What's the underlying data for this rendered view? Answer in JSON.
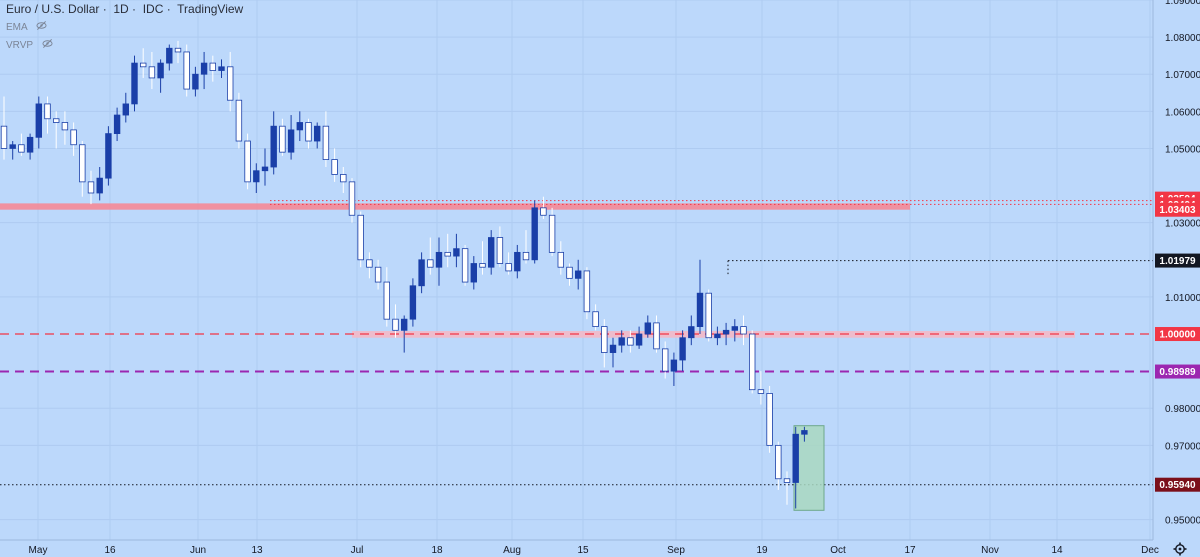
{
  "header": {
    "title": "Euro / U.S. Dollar",
    "interval": "1D",
    "source": "IDC",
    "platform": "TradingView"
  },
  "indicators": [
    {
      "label": "EMA",
      "icon": "eye-off-icon"
    },
    {
      "label": "VRVP",
      "icon": "eye-off-icon"
    }
  ],
  "chart_data": {
    "type": "candlestick",
    "ylim": [
      0.9445,
      1.09
    ],
    "y_ticks": [
      "1.09000",
      "1.08000",
      "1.07000",
      "1.06000",
      "1.05000",
      "1.03000",
      "1.01000",
      "0.98000",
      "0.97000",
      "0.95000"
    ],
    "x_ticks": [
      "May",
      "16",
      "Jun",
      "13",
      "Jul",
      "18",
      "Aug",
      "15",
      "Sep",
      "19",
      "Oct",
      "17",
      "Nov",
      "14",
      "Dec"
    ],
    "price_labels": [
      {
        "value": 1.03594,
        "text": "1.03594",
        "color": "#f23645"
      },
      {
        "value": 1.03494,
        "text": "1.03494",
        "color": "#f23645"
      },
      {
        "value": 1.03403,
        "text": "1.03403",
        "color": "#f23645"
      },
      {
        "value": 1.01979,
        "text": "1.01979",
        "color": "#131722"
      },
      {
        "value": 1.0,
        "text": "1.00000",
        "color": "#f23645"
      },
      {
        "value": 0.98989,
        "text": "0.98989",
        "color": "#9c27b0"
      },
      {
        "value": 0.9594,
        "text": "0.95940",
        "color": "#7b0f1a"
      }
    ],
    "zones": [
      {
        "name": "resistance-zone",
        "from": 1.0335,
        "to": 1.0352,
        "color": "#f58a96"
      },
      {
        "name": "parity-zone",
        "from": 0.999,
        "to": 1.0008,
        "color": "#f3b9c6"
      }
    ],
    "levels": [
      {
        "value": 1.0,
        "style": "dashed",
        "color": "#f23645"
      },
      {
        "value": 0.98989,
        "style": "dashed",
        "color": "#9c27b0"
      },
      {
        "value": 1.01979,
        "style": "dotted",
        "color": "#131722"
      },
      {
        "value": 0.9594,
        "style": "dotted",
        "color": "#131722"
      },
      {
        "value": 1.03594,
        "style": "dotted",
        "color": "#f23645"
      },
      {
        "value": 1.03494,
        "style": "dotted",
        "color": "#f23645"
      }
    ],
    "highlight_box": {
      "y_from": 0.9525,
      "y_to": 0.9753,
      "color": "#a9d8bf"
    },
    "series": [
      {
        "name": "",
        "ohlc": [
          [
            1.056,
            1.064,
            1.047,
            1.05
          ],
          [
            1.05,
            1.052,
            1.047,
            1.051
          ],
          [
            1.051,
            1.054,
            1.048,
            1.049
          ],
          [
            1.049,
            1.054,
            1.047,
            1.053
          ],
          [
            1.053,
            1.064,
            1.05,
            1.062
          ],
          [
            1.062,
            1.064,
            1.054,
            1.058
          ],
          [
            1.058,
            1.06,
            1.05,
            1.057
          ],
          [
            1.057,
            1.06,
            1.051,
            1.055
          ],
          [
            1.055,
            1.057,
            1.048,
            1.051
          ],
          [
            1.051,
            1.052,
            1.037,
            1.041
          ],
          [
            1.041,
            1.044,
            1.035,
            1.038
          ],
          [
            1.038,
            1.045,
            1.036,
            1.042
          ],
          [
            1.042,
            1.056,
            1.04,
            1.054
          ],
          [
            1.054,
            1.061,
            1.052,
            1.059
          ],
          [
            1.059,
            1.065,
            1.057,
            1.062
          ],
          [
            1.062,
            1.075,
            1.06,
            1.073
          ],
          [
            1.073,
            1.077,
            1.069,
            1.072
          ],
          [
            1.072,
            1.076,
            1.066,
            1.069
          ],
          [
            1.069,
            1.074,
            1.065,
            1.073
          ],
          [
            1.073,
            1.078,
            1.071,
            1.077
          ],
          [
            1.077,
            1.079,
            1.073,
            1.076
          ],
          [
            1.076,
            1.078,
            1.064,
            1.066
          ],
          [
            1.066,
            1.072,
            1.064,
            1.07
          ],
          [
            1.07,
            1.076,
            1.066,
            1.073
          ],
          [
            1.073,
            1.075,
            1.068,
            1.071
          ],
          [
            1.071,
            1.074,
            1.069,
            1.072
          ],
          [
            1.072,
            1.076,
            1.06,
            1.063
          ],
          [
            1.063,
            1.065,
            1.05,
            1.052
          ],
          [
            1.052,
            1.054,
            1.039,
            1.041
          ],
          [
            1.041,
            1.046,
            1.038,
            1.044
          ],
          [
            1.044,
            1.05,
            1.04,
            1.045
          ],
          [
            1.045,
            1.06,
            1.043,
            1.056
          ],
          [
            1.056,
            1.058,
            1.048,
            1.049
          ],
          [
            1.049,
            1.059,
            1.047,
            1.055
          ],
          [
            1.055,
            1.06,
            1.052,
            1.057
          ],
          [
            1.057,
            1.058,
            1.05,
            1.052
          ],
          [
            1.052,
            1.057,
            1.05,
            1.056
          ],
          [
            1.056,
            1.06,
            1.045,
            1.047
          ],
          [
            1.047,
            1.05,
            1.041,
            1.043
          ],
          [
            1.043,
            1.045,
            1.038,
            1.041
          ],
          [
            1.041,
            1.042,
            1.03,
            1.032
          ],
          [
            1.032,
            1.033,
            1.018,
            1.02
          ],
          [
            1.02,
            1.022,
            1.015,
            1.018
          ],
          [
            1.018,
            1.02,
            1.012,
            1.014
          ],
          [
            1.014,
            1.018,
            1.002,
            1.004
          ],
          [
            1.004,
            1.008,
            0.999,
            1.001
          ],
          [
            1.001,
            1.005,
            0.995,
            1.004
          ],
          [
            1.004,
            1.015,
            1.002,
            1.013
          ],
          [
            1.013,
            1.022,
            1.011,
            1.02
          ],
          [
            1.02,
            1.026,
            1.016,
            1.018
          ],
          [
            1.018,
            1.026,
            1.013,
            1.022
          ],
          [
            1.022,
            1.027,
            1.018,
            1.021
          ],
          [
            1.021,
            1.027,
            1.018,
            1.023
          ],
          [
            1.023,
            1.024,
            1.013,
            1.014
          ],
          [
            1.014,
            1.021,
            1.012,
            1.019
          ],
          [
            1.019,
            1.025,
            1.016,
            1.018
          ],
          [
            1.018,
            1.028,
            1.016,
            1.026
          ],
          [
            1.026,
            1.029,
            1.018,
            1.019
          ],
          [
            1.019,
            1.022,
            1.016,
            1.017
          ],
          [
            1.017,
            1.024,
            1.015,
            1.022
          ],
          [
            1.022,
            1.028,
            1.019,
            1.02
          ],
          [
            1.02,
            1.036,
            1.019,
            1.034
          ],
          [
            1.034,
            1.037,
            1.031,
            1.032
          ],
          [
            1.032,
            1.034,
            1.021,
            1.022
          ],
          [
            1.022,
            1.025,
            1.016,
            1.018
          ],
          [
            1.018,
            1.019,
            1.013,
            1.015
          ],
          [
            1.015,
            1.02,
            1.012,
            1.017
          ],
          [
            1.017,
            1.018,
            1.004,
            1.006
          ],
          [
            1.006,
            1.008,
            1.001,
            1.002
          ],
          [
            1.002,
            1.004,
            0.991,
            0.995
          ],
          [
            0.995,
            0.999,
            0.991,
            0.997
          ],
          [
            0.997,
            1.001,
            0.995,
            0.999
          ],
          [
            0.999,
            1.001,
            0.995,
            0.997
          ],
          [
            0.997,
            1.002,
            0.996,
            1.0
          ],
          [
            1.0,
            1.005,
            0.999,
            1.003
          ],
          [
            1.003,
            1.005,
            0.995,
            0.996
          ],
          [
            0.996,
            0.998,
            0.988,
            0.99
          ],
          [
            0.99,
            0.995,
            0.986,
            0.993
          ],
          [
            0.993,
            1.001,
            0.99,
            0.999
          ],
          [
            0.999,
            1.005,
            0.997,
            1.002
          ],
          [
            1.002,
            1.02,
            1.0,
            1.011
          ],
          [
            1.011,
            1.012,
            0.998,
            0.999
          ],
          [
            0.999,
            1.002,
            0.997,
            1.0
          ],
          [
            1.0,
            1.003,
            0.997,
            1.001
          ],
          [
            1.001,
            1.004,
            0.998,
            1.002
          ],
          [
            1.002,
            1.005,
            0.997,
            1.0
          ],
          [
            1.0,
            1.001,
            0.984,
            0.985
          ],
          [
            0.985,
            0.99,
            0.981,
            0.984
          ],
          [
            0.984,
            0.986,
            0.968,
            0.97
          ],
          [
            0.97,
            0.971,
            0.958,
            0.961
          ],
          [
            0.961,
            0.963,
            0.954,
            0.96
          ],
          [
            0.96,
            0.975,
            0.953,
            0.973
          ],
          [
            0.973,
            0.975,
            0.971,
            0.974
          ]
        ]
      }
    ]
  }
}
